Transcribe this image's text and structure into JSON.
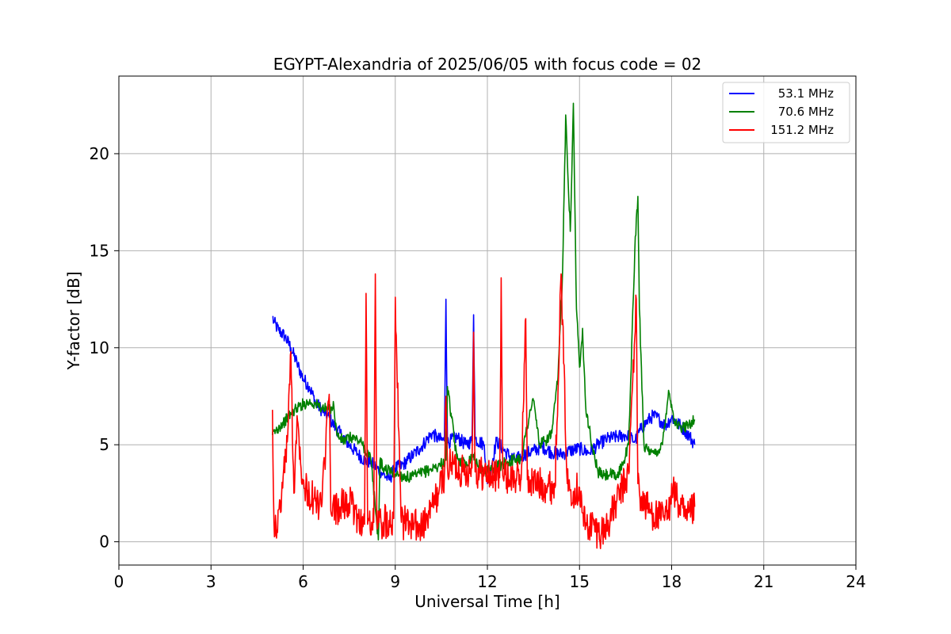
{
  "chart_data": {
    "type": "line",
    "title": "EGYPT-Alexandria of 2025/06/05 with focus code = 02",
    "xlabel": "Universal Time [h]",
    "ylabel": "Y-factor [dB]",
    "xlim": [
      0,
      24
    ],
    "ylim": [
      -1.2,
      24
    ],
    "xticks": [
      0,
      3,
      6,
      9,
      12,
      15,
      18,
      21,
      24
    ],
    "yticks": [
      0,
      5,
      10,
      15,
      20
    ],
    "grid": true,
    "legend_position": "top-right",
    "series": [
      {
        "name": "53.1 MHz",
        "color": "#0000ff",
        "x": [
          5.0,
          5.05,
          5.2,
          5.4,
          5.6,
          5.8,
          6.0,
          6.2,
          6.4,
          6.6,
          6.8,
          7.0,
          7.2,
          7.5,
          7.8,
          8.0,
          8.2,
          8.4,
          8.6,
          8.8,
          9.0,
          9.2,
          9.4,
          9.6,
          9.8,
          10.0,
          10.2,
          10.4,
          10.6,
          10.65,
          10.7,
          11.0,
          11.3,
          11.5,
          11.55,
          11.6,
          11.9,
          12.0,
          12.3,
          12.6,
          12.9,
          13.2,
          13.5,
          13.8,
          14.1,
          14.4,
          14.7,
          15.0,
          15.3,
          15.6,
          15.9,
          16.2,
          16.5,
          16.8,
          17.0,
          17.2,
          17.4,
          17.6,
          17.8,
          18.0,
          18.2,
          18.4,
          18.6,
          18.75
        ],
        "y": [
          11.6,
          11.3,
          10.9,
          10.6,
          10.0,
          9.2,
          8.4,
          8.0,
          7.2,
          6.8,
          6.5,
          6.0,
          5.6,
          5.0,
          4.5,
          4.2,
          4.1,
          3.8,
          3.5,
          3.2,
          3.8,
          3.9,
          4.2,
          4.5,
          4.8,
          5.2,
          5.6,
          5.3,
          5.2,
          12.5,
          5.1,
          5.4,
          5.0,
          5.2,
          11.7,
          5.3,
          5.0,
          3.0,
          5.2,
          4.6,
          4.2,
          4.5,
          4.7,
          4.9,
          4.6,
          4.5,
          4.7,
          4.8,
          4.6,
          5.0,
          5.3,
          5.4,
          5.5,
          5.2,
          5.8,
          6.2,
          6.5,
          6.3,
          6.0,
          6.4,
          6.1,
          5.8,
          5.4,
          5.0
        ]
      },
      {
        "name": "70.6 MHz",
        "color": "#008000",
        "x": [
          5.0,
          5.2,
          5.4,
          5.6,
          5.8,
          6.0,
          6.2,
          6.4,
          6.6,
          6.8,
          7.0,
          7.1,
          7.3,
          7.6,
          7.9,
          8.2,
          8.45,
          8.5,
          8.6,
          8.9,
          9.2,
          9.5,
          9.8,
          10.1,
          10.4,
          10.65,
          10.7,
          11.0,
          11.3,
          11.55,
          11.6,
          11.9,
          12.2,
          12.5,
          12.8,
          13.1,
          13.4,
          13.5,
          13.7,
          13.9,
          14.1,
          14.3,
          14.45,
          14.55,
          14.7,
          14.8,
          14.9,
          15.0,
          15.1,
          15.2,
          15.4,
          15.6,
          15.8,
          16.0,
          16.2,
          16.4,
          16.6,
          16.8,
          16.9,
          16.95,
          17.1,
          17.3,
          17.5,
          17.7,
          17.9,
          18.1,
          18.3,
          18.5,
          18.75
        ],
        "y": [
          5.5,
          5.9,
          6.2,
          6.6,
          6.9,
          7.1,
          7.2,
          7.1,
          6.9,
          6.8,
          7.0,
          5.5,
          5.2,
          5.4,
          5.1,
          4.3,
          0.1,
          4.2,
          3.8,
          3.6,
          3.4,
          3.3,
          3.5,
          3.7,
          3.9,
          4.2,
          8.0,
          4.3,
          4.0,
          4.5,
          4.2,
          3.6,
          3.8,
          4.0,
          4.2,
          4.3,
          6.8,
          7.3,
          5.0,
          5.2,
          5.6,
          8.5,
          14.0,
          22.0,
          16.0,
          22.6,
          12.0,
          9.0,
          11.0,
          7.0,
          5.0,
          3.6,
          3.4,
          3.5,
          3.3,
          4.0,
          5.0,
          15.0,
          17.8,
          12.0,
          5.0,
          4.5,
          4.6,
          5.0,
          7.8,
          6.2,
          5.8,
          6.0,
          6.3
        ]
      },
      {
        "name": "151.2 MHz",
        "color": "#ff0000",
        "x": [
          5.0,
          5.05,
          5.15,
          5.3,
          5.5,
          5.6,
          5.7,
          5.8,
          6.0,
          6.2,
          6.4,
          6.6,
          6.85,
          6.9,
          7.2,
          7.5,
          7.8,
          8.0,
          8.05,
          8.1,
          8.3,
          8.35,
          8.4,
          8.6,
          8.8,
          8.95,
          9.0,
          9.2,
          9.5,
          9.8,
          10.0,
          10.2,
          10.4,
          10.6,
          10.65,
          10.7,
          10.9,
          11.2,
          11.5,
          11.55,
          11.6,
          11.9,
          12.2,
          12.4,
          12.45,
          12.5,
          12.8,
          13.1,
          13.25,
          13.3,
          13.6,
          13.9,
          14.2,
          14.4,
          14.6,
          14.8,
          15.0,
          15.1,
          15.2,
          15.4,
          15.6,
          15.8,
          16.0,
          16.2,
          16.4,
          16.6,
          16.85,
          16.9,
          17.0,
          17.3,
          17.6,
          17.9,
          18.0,
          18.2,
          18.5,
          18.75
        ],
        "y": [
          6.8,
          1.0,
          0.6,
          2.5,
          5.5,
          9.8,
          2.5,
          6.5,
          3.0,
          2.4,
          2.1,
          1.8,
          7.6,
          1.6,
          1.8,
          2.0,
          1.2,
          0.9,
          12.8,
          0.9,
          1.0,
          13.8,
          1.0,
          1.0,
          1.1,
          1.2,
          12.6,
          1.0,
          0.9,
          0.7,
          1.0,
          1.8,
          2.5,
          3.5,
          7.5,
          3.8,
          4.0,
          3.6,
          3.8,
          10.8,
          3.6,
          3.5,
          3.4,
          3.3,
          13.6,
          3.4,
          3.3,
          3.2,
          11.5,
          3.2,
          3.0,
          2.9,
          2.8,
          13.8,
          3.0,
          2.6,
          2.8,
          1.5,
          0.8,
          0.9,
          0.5,
          0.6,
          1.2,
          2.0,
          2.8,
          3.5,
          12.5,
          3.0,
          2.2,
          1.6,
          1.2,
          1.4,
          3.0,
          2.0,
          1.1,
          1.8
        ]
      }
    ]
  }
}
